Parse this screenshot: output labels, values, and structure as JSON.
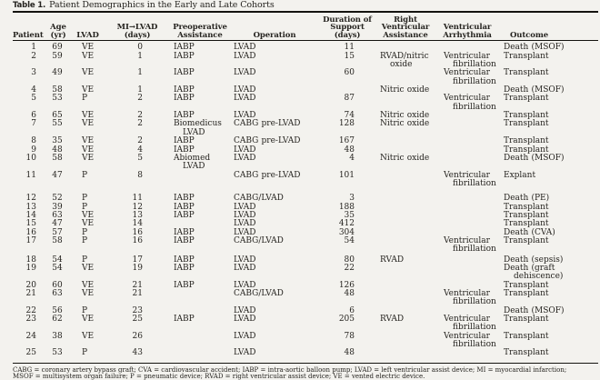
{
  "table": {
    "label": "Table 1.",
    "caption": "Patient Demographics in the Early and Late Cohorts",
    "columns": [
      {
        "key": "patient",
        "label": "Patient",
        "label_lines": [
          "Patient"
        ]
      },
      {
        "key": "age",
        "label": "Age (yr)",
        "label_lines": [
          "Age",
          "(yr)"
        ]
      },
      {
        "key": "lvad",
        "label": "LVAD",
        "label_lines": [
          "LVAD"
        ]
      },
      {
        "key": "mi_to_lvad",
        "label": "MI→LVAD (days)",
        "label_lines": [
          "MI→LVAD",
          "(days)"
        ]
      },
      {
        "key": "preop",
        "label": "Preoperative Assistance",
        "label_lines": [
          "Preoperative",
          "Assistance"
        ]
      },
      {
        "key": "operation",
        "label": "Operation",
        "label_lines": [
          "Operation"
        ]
      },
      {
        "key": "duration",
        "label": "Duration of Support (days)",
        "label_lines": [
          "Duration of",
          "Support",
          "(days)"
        ]
      },
      {
        "key": "rv_assist",
        "label": "Right Ventricular Assistance",
        "label_lines": [
          "Right",
          "Ventricular",
          "Assistance"
        ]
      },
      {
        "key": "arrhythmia",
        "label": "Ventricular Arrhythmia",
        "label_lines": [
          "Ventricular",
          "Arrhythmia"
        ]
      },
      {
        "key": "outcome",
        "label": "Outcome",
        "label_lines": [
          "Outcome"
        ]
      }
    ],
    "rows": [
      [
        "1",
        "69",
        "VE",
        "0",
        "IABP",
        "LVAD",
        "11",
        "",
        "",
        "Death (MSOF)"
      ],
      [
        "2",
        "59",
        "VE",
        "1",
        "IABP",
        "LVAD",
        "15",
        "RVAD/nitric oxide",
        "Ventricular fibrillation",
        "Transplant"
      ],
      [
        "3",
        "49",
        "VE",
        "1",
        "IABP",
        "LVAD",
        "60",
        "",
        "Ventricular fibrillation",
        "Transplant"
      ],
      [
        "4",
        "58",
        "VE",
        "1",
        "IABP",
        "LVAD",
        "",
        "Nitric oxide",
        "",
        "Death (MSOF)"
      ],
      [
        "5",
        "53",
        "P",
        "2",
        "IABP",
        "LVAD",
        "87",
        "",
        "Ventricular fibrillation",
        "Transplant"
      ],
      [
        "6",
        "65",
        "VE",
        "2",
        "IABP",
        "LVAD",
        "74",
        "Nitric oxide",
        "",
        "Transplant"
      ],
      [
        "7",
        "55",
        "VE",
        "2",
        "Biomedicus LVAD",
        "CABG pre-LVAD",
        "128",
        "Nitric oxide",
        "",
        "Transplant"
      ],
      [
        "8",
        "35",
        "VE",
        "2",
        "IABP",
        "CABG pre-LVAD",
        "167",
        "",
        "",
        "Transplant"
      ],
      [
        "9",
        "48",
        "VE",
        "4",
        "IABP",
        "LVAD",
        "48",
        "",
        "",
        "Transplant"
      ],
      [
        "10",
        "58",
        "VE",
        "5",
        "Abiomed LVAD",
        "LVAD",
        "4",
        "Nitric oxide",
        "",
        "Death (MSOF)"
      ],
      [
        "11",
        "47",
        "P",
        "8",
        "",
        "CABG pre-LVAD",
        "101",
        "",
        "Ventricular fibrillation",
        "Explant"
      ],
      [
        "12",
        "52",
        "P",
        "11",
        "IABP",
        "CABG/LVAD",
        "3",
        "",
        "",
        "Death (PE)"
      ],
      [
        "13",
        "39",
        "P",
        "12",
        "IABP",
        "LVAD",
        "188",
        "",
        "",
        "Transplant"
      ],
      [
        "14",
        "63",
        "VE",
        "13",
        "IABP",
        "LVAD",
        "35",
        "",
        "",
        "Transplant"
      ],
      [
        "15",
        "47",
        "VE",
        "14",
        "",
        "LVAD",
        "412",
        "",
        "",
        "Transplant"
      ],
      [
        "16",
        "57",
        "P",
        "16",
        "IABP",
        "LVAD",
        "304",
        "",
        "",
        "Death (CVA)"
      ],
      [
        "17",
        "58",
        "P",
        "16",
        "IABP",
        "CABG/LVAD",
        "54",
        "",
        "Ventricular fibrillation",
        "Transplant"
      ],
      [
        "18",
        "54",
        "P",
        "17",
        "IABP",
        "LVAD",
        "80",
        "RVAD",
        "",
        "Death (sepsis)"
      ],
      [
        "19",
        "54",
        "VE",
        "19",
        "IABP",
        "LVAD",
        "22",
        "",
        "",
        "Death (graft dehiscence)"
      ],
      [
        "20",
        "60",
        "VE",
        "21",
        "IABP",
        "LVAD",
        "126",
        "",
        "",
        "Transplant"
      ],
      [
        "21",
        "63",
        "VE",
        "21",
        "",
        "CABG/LVAD",
        "48",
        "",
        "Ventricular fibrillation",
        "Transplant"
      ],
      [
        "22",
        "56",
        "P",
        "23",
        "",
        "LVAD",
        "6",
        "",
        "",
        "Death (MSOF)"
      ],
      [
        "23",
        "62",
        "VE",
        "25",
        "IABP",
        "LVAD",
        "205",
        "RVAD",
        "Ventricular fibrillation",
        "Transplant"
      ],
      [
        "24",
        "38",
        "VE",
        "26",
        "",
        "LVAD",
        "78",
        "",
        "Ventricular fibrillation",
        "Transplant"
      ],
      [
        "25",
        "53",
        "P",
        "43",
        "",
        "LVAD",
        "48",
        "",
        "",
        "Transplant"
      ]
    ],
    "group_gap_before_rows": [
      "12",
      "18"
    ],
    "footnotes": [
      "CABG = coronary artery bypass graft; CVA = cardiovascular accident; IABP = intra-aortic balloon pump; LVAD = left ventricular assist device; MI = myocardial infarction;",
      "MSOF = multisystem organ failure; P = pneumatic device; RVAD = right ventricular assist device; VE = vented electric device."
    ]
  }
}
